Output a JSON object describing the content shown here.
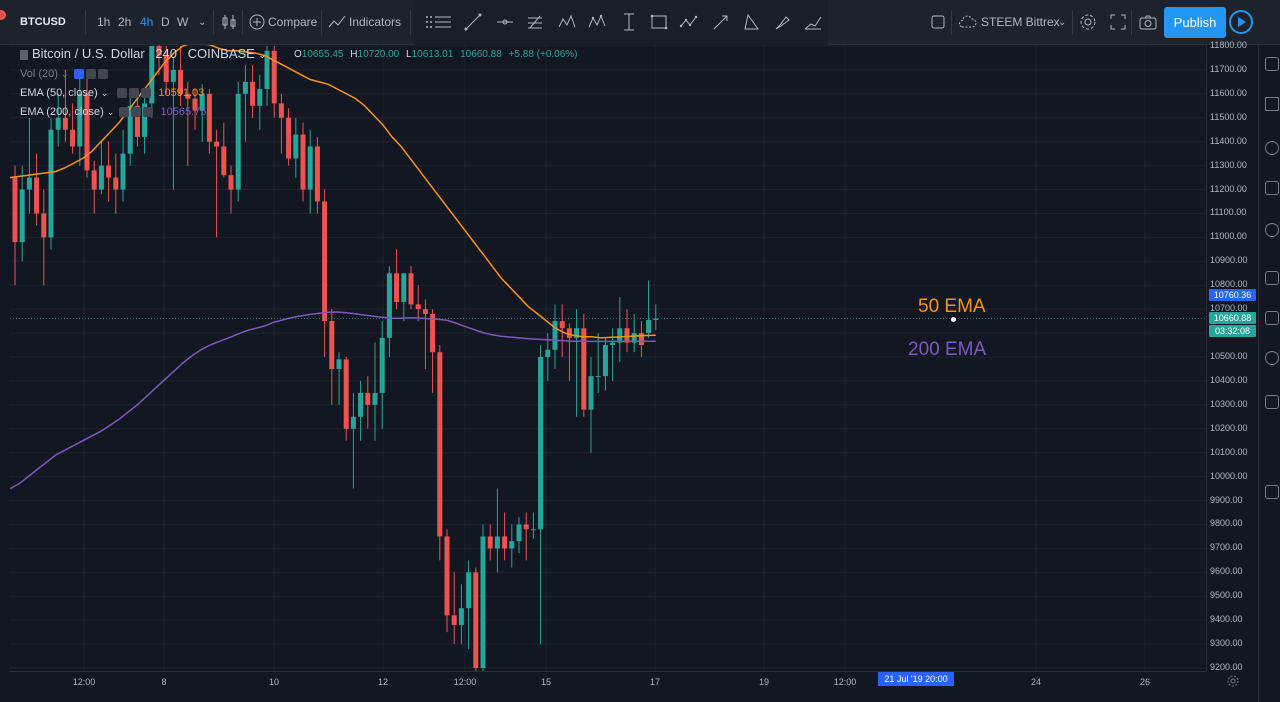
{
  "toolbar": {
    "symbol": "BTCUSD",
    "intervals": [
      "1h",
      "2h",
      "4h",
      "D",
      "W"
    ],
    "active_interval": "4h",
    "compare": "Compare",
    "indicators": "Indicators",
    "watchlist": "STEEM Bittrex",
    "publish": "Publish"
  },
  "legend": {
    "title": "Bitcoin / U.S. Dollar",
    "interval": "240",
    "exchange": "COINBASE",
    "ohlc": {
      "o_key": "O",
      "o": "10655.45",
      "h_key": "H",
      "h": "10720.00",
      "l_key": "L",
      "l": "10613.01",
      "c": "10660.88",
      "change": "+5.88 (+0.06%)"
    },
    "vol": "Vol (20)",
    "ema50": {
      "label": "EMA (50, close)",
      "value": "10591.03"
    },
    "ema200": {
      "label": "EMA (200, close)",
      "value": "10565.75"
    }
  },
  "annotations": {
    "ema50": "50 EMA",
    "ema200": "200 EMA"
  },
  "price_axis": {
    "labels": [
      "11800.00",
      "11700.00",
      "11600.00",
      "11500.00",
      "11400.00",
      "11300.00",
      "11200.00",
      "11100.00",
      "11000.00",
      "10900.00",
      "10800.00",
      "10700.00",
      "10600.00",
      "10500.00",
      "10400.00",
      "10300.00",
      "10200.00",
      "10100.00",
      "10000.00",
      "9900.00",
      "9800.00",
      "9700.00",
      "9600.00",
      "9500.00",
      "9400.00",
      "9300.00",
      "9200.00"
    ],
    "high_tag": "10760.36",
    "last_tag": "10660.88",
    "countdown": "03:32:08"
  },
  "time_axis": {
    "labels": [
      "12:00",
      "8",
      "10",
      "12",
      "12:00",
      "15",
      "17",
      "19",
      "12:00",
      "24",
      "26"
    ],
    "cursor": "21 Jul '19   20:00"
  },
  "colors": {
    "up": "#26a69a",
    "down": "#ef5350",
    "ema50": "#f7931a",
    "ema200": "#7e57c2",
    "accent": "#2196f3",
    "background": "#131722"
  },
  "chart_data": {
    "type": "candlestick",
    "symbol": "BTCUSD",
    "interval": "240",
    "ylim": [
      9200,
      11800
    ],
    "candles": [
      {
        "o": 11250,
        "h": 11300,
        "l": 10800,
        "c": 10980
      },
      {
        "o": 10980,
        "h": 11300,
        "l": 10900,
        "c": 11200
      },
      {
        "o": 11200,
        "h": 11500,
        "l": 11100,
        "c": 11250
      },
      {
        "o": 11250,
        "h": 11350,
        "l": 11050,
        "c": 11100
      },
      {
        "o": 11100,
        "h": 11200,
        "l": 10800,
        "c": 11000
      },
      {
        "o": 11000,
        "h": 11500,
        "l": 10950,
        "c": 11450
      },
      {
        "o": 11450,
        "h": 11600,
        "l": 11380,
        "c": 11500
      },
      {
        "o": 11500,
        "h": 11700,
        "l": 11400,
        "c": 11450
      },
      {
        "o": 11450,
        "h": 11560,
        "l": 11350,
        "c": 11380
      },
      {
        "o": 11380,
        "h": 11700,
        "l": 11300,
        "c": 11600
      },
      {
        "o": 11600,
        "h": 11680,
        "l": 11250,
        "c": 11280
      },
      {
        "o": 11280,
        "h": 11320,
        "l": 11100,
        "c": 11200
      },
      {
        "o": 11200,
        "h": 11400,
        "l": 11180,
        "c": 11300
      },
      {
        "o": 11300,
        "h": 11400,
        "l": 11150,
        "c": 11250
      },
      {
        "o": 11250,
        "h": 11350,
        "l": 11100,
        "c": 11200
      },
      {
        "o": 11200,
        "h": 11450,
        "l": 11150,
        "c": 11350
      },
      {
        "o": 11350,
        "h": 11600,
        "l": 11300,
        "c": 11550
      },
      {
        "o": 11550,
        "h": 11600,
        "l": 11380,
        "c": 11420
      },
      {
        "o": 11420,
        "h": 11600,
        "l": 11350,
        "c": 11560
      },
      {
        "o": 11560,
        "h": 11800,
        "l": 11500,
        "c": 11800
      },
      {
        "o": 11800,
        "h": 11900,
        "l": 11680,
        "c": 11760
      },
      {
        "o": 11760,
        "h": 11800,
        "l": 11600,
        "c": 11650
      },
      {
        "o": 11650,
        "h": 11750,
        "l": 11200,
        "c": 11700
      },
      {
        "o": 11700,
        "h": 11800,
        "l": 11550,
        "c": 11600
      },
      {
        "o": 11600,
        "h": 11650,
        "l": 11300,
        "c": 11580
      },
      {
        "o": 11580,
        "h": 11620,
        "l": 11450,
        "c": 11530
      },
      {
        "o": 11530,
        "h": 11640,
        "l": 11400,
        "c": 11600
      },
      {
        "o": 11600,
        "h": 11620,
        "l": 11350,
        "c": 11400
      },
      {
        "o": 11400,
        "h": 11450,
        "l": 11000,
        "c": 11380
      },
      {
        "o": 11380,
        "h": 11480,
        "l": 11250,
        "c": 11260
      },
      {
        "o": 11260,
        "h": 11300,
        "l": 11100,
        "c": 11200
      },
      {
        "o": 11200,
        "h": 11650,
        "l": 11150,
        "c": 11600
      },
      {
        "o": 11600,
        "h": 11720,
        "l": 11400,
        "c": 11650
      },
      {
        "o": 11650,
        "h": 11720,
        "l": 11500,
        "c": 11550
      },
      {
        "o": 11550,
        "h": 11680,
        "l": 11450,
        "c": 11620
      },
      {
        "o": 11620,
        "h": 11800,
        "l": 11550,
        "c": 11780
      },
      {
        "o": 11780,
        "h": 11800,
        "l": 11500,
        "c": 11560
      },
      {
        "o": 11560,
        "h": 11600,
        "l": 11350,
        "c": 11500
      },
      {
        "o": 11500,
        "h": 11540,
        "l": 11300,
        "c": 11330
      },
      {
        "o": 11330,
        "h": 11500,
        "l": 11250,
        "c": 11430
      },
      {
        "o": 11430,
        "h": 11480,
        "l": 11150,
        "c": 11200
      },
      {
        "o": 11200,
        "h": 11450,
        "l": 11100,
        "c": 11380
      },
      {
        "o": 11380,
        "h": 11420,
        "l": 11100,
        "c": 11150
      },
      {
        "o": 11150,
        "h": 11200,
        "l": 10500,
        "c": 10650
      },
      {
        "o": 10650,
        "h": 10700,
        "l": 10300,
        "c": 10450
      },
      {
        "o": 10450,
        "h": 10520,
        "l": 10300,
        "c": 10490
      },
      {
        "o": 10490,
        "h": 10500,
        "l": 10150,
        "c": 10200
      },
      {
        "o": 10200,
        "h": 10350,
        "l": 9950,
        "c": 10250
      },
      {
        "o": 10250,
        "h": 10400,
        "l": 10150,
        "c": 10350
      },
      {
        "o": 10350,
        "h": 10420,
        "l": 10200,
        "c": 10300
      },
      {
        "o": 10300,
        "h": 10560,
        "l": 10150,
        "c": 10350
      },
      {
        "o": 10350,
        "h": 10650,
        "l": 10200,
        "c": 10580
      },
      {
        "o": 10580,
        "h": 10880,
        "l": 10500,
        "c": 10850
      },
      {
        "o": 10850,
        "h": 10950,
        "l": 10700,
        "c": 10730
      },
      {
        "o": 10730,
        "h": 10850,
        "l": 10650,
        "c": 10850
      },
      {
        "o": 10850,
        "h": 10880,
        "l": 10700,
        "c": 10720
      },
      {
        "o": 10720,
        "h": 10800,
        "l": 10650,
        "c": 10700
      },
      {
        "o": 10700,
        "h": 10740,
        "l": 10450,
        "c": 10680
      },
      {
        "o": 10680,
        "h": 10700,
        "l": 10350,
        "c": 10520
      },
      {
        "o": 10520,
        "h": 10550,
        "l": 9650,
        "c": 9750
      },
      {
        "o": 9750,
        "h": 9780,
        "l": 9350,
        "c": 9420
      },
      {
        "o": 9420,
        "h": 9600,
        "l": 9300,
        "c": 9380
      },
      {
        "o": 9380,
        "h": 9550,
        "l": 9300,
        "c": 9450
      },
      {
        "o": 9450,
        "h": 9650,
        "l": 9280,
        "c": 9600
      },
      {
        "o": 9600,
        "h": 9620,
        "l": 9100,
        "c": 9200
      },
      {
        "o": 9200,
        "h": 9800,
        "l": 9150,
        "c": 9750
      },
      {
        "o": 9750,
        "h": 9800,
        "l": 9650,
        "c": 9700
      },
      {
        "o": 9700,
        "h": 9950,
        "l": 9600,
        "c": 9750
      },
      {
        "o": 9750,
        "h": 9850,
        "l": 9650,
        "c": 9700
      },
      {
        "o": 9700,
        "h": 9800,
        "l": 9620,
        "c": 9730
      },
      {
        "o": 9730,
        "h": 9830,
        "l": 9680,
        "c": 9800
      },
      {
        "o": 9800,
        "h": 9850,
        "l": 9650,
        "c": 9780
      },
      {
        "o": 9780,
        "h": 9850,
        "l": 9740,
        "c": 9780
      },
      {
        "o": 9780,
        "h": 10550,
        "l": 9300,
        "c": 10500
      },
      {
        "o": 10500,
        "h": 10600,
        "l": 10400,
        "c": 10530
      },
      {
        "o": 10530,
        "h": 10720,
        "l": 10450,
        "c": 10650
      },
      {
        "o": 10650,
        "h": 10720,
        "l": 10500,
        "c": 10620
      },
      {
        "o": 10620,
        "h": 10640,
        "l": 10400,
        "c": 10580
      },
      {
        "o": 10580,
        "h": 10700,
        "l": 10250,
        "c": 10620
      },
      {
        "o": 10620,
        "h": 10680,
        "l": 10250,
        "c": 10280
      },
      {
        "o": 10280,
        "h": 10500,
        "l": 10100,
        "c": 10420
      },
      {
        "o": 10420,
        "h": 10600,
        "l": 10350,
        "c": 10420
      },
      {
        "o": 10420,
        "h": 10580,
        "l": 10360,
        "c": 10550
      },
      {
        "o": 10550,
        "h": 10620,
        "l": 10400,
        "c": 10560
      },
      {
        "o": 10560,
        "h": 10750,
        "l": 10480,
        "c": 10620
      },
      {
        "o": 10620,
        "h": 10700,
        "l": 10520,
        "c": 10560
      },
      {
        "o": 10560,
        "h": 10680,
        "l": 10520,
        "c": 10600
      },
      {
        "o": 10600,
        "h": 10650,
        "l": 10500,
        "c": 10550
      },
      {
        "o": 10600,
        "h": 10820,
        "l": 10580,
        "c": 10655
      },
      {
        "o": 10655,
        "h": 10720,
        "l": 10613,
        "c": 10661
      }
    ],
    "ema50": [
      11250,
      11255,
      11260,
      11265,
      11270,
      11275,
      11290,
      11310,
      11330,
      11360,
      11400,
      11440,
      11480,
      11530,
      11580,
      11630,
      11680,
      11730,
      11770,
      11800,
      11812,
      11810,
      11805,
      11790,
      11780,
      11780,
      11775,
      11770,
      11760,
      11740,
      11720,
      11700,
      11680,
      11660,
      11650,
      11640,
      11620,
      11600,
      11580,
      11550,
      11510,
      11470,
      11420,
      11380,
      11330,
      11280,
      11230,
      11180,
      11130,
      11080,
      11030,
      10980,
      10930,
      10880,
      10830,
      10790,
      10750,
      10710,
      10680,
      10650,
      10620,
      10600,
      10590,
      10585,
      10585,
      10580,
      10582,
      10584,
      10586,
      10588,
      10590,
      10591
    ],
    "ema200": [
      9950,
      9970,
      10000,
      10030,
      10060,
      10090,
      10110,
      10130,
      10150,
      10170,
      10190,
      10215,
      10240,
      10270,
      10300,
      10335,
      10370,
      10405,
      10440,
      10475,
      10505,
      10530,
      10550,
      10565,
      10580,
      10595,
      10610,
      10620,
      10630,
      10645,
      10655,
      10665,
      10672,
      10678,
      10683,
      10687,
      10688,
      10685,
      10680,
      10675,
      10670,
      10666,
      10662,
      10662,
      10664,
      10663,
      10660,
      10658,
      10654,
      10642,
      10628,
      10615,
      10602,
      10593,
      10587,
      10583,
      10580,
      10576,
      10574,
      10572,
      10570,
      10568,
      10566,
      10566,
      10565,
      10565,
      10565,
      10566,
      10566,
      10566,
      10566,
      10566
    ]
  }
}
